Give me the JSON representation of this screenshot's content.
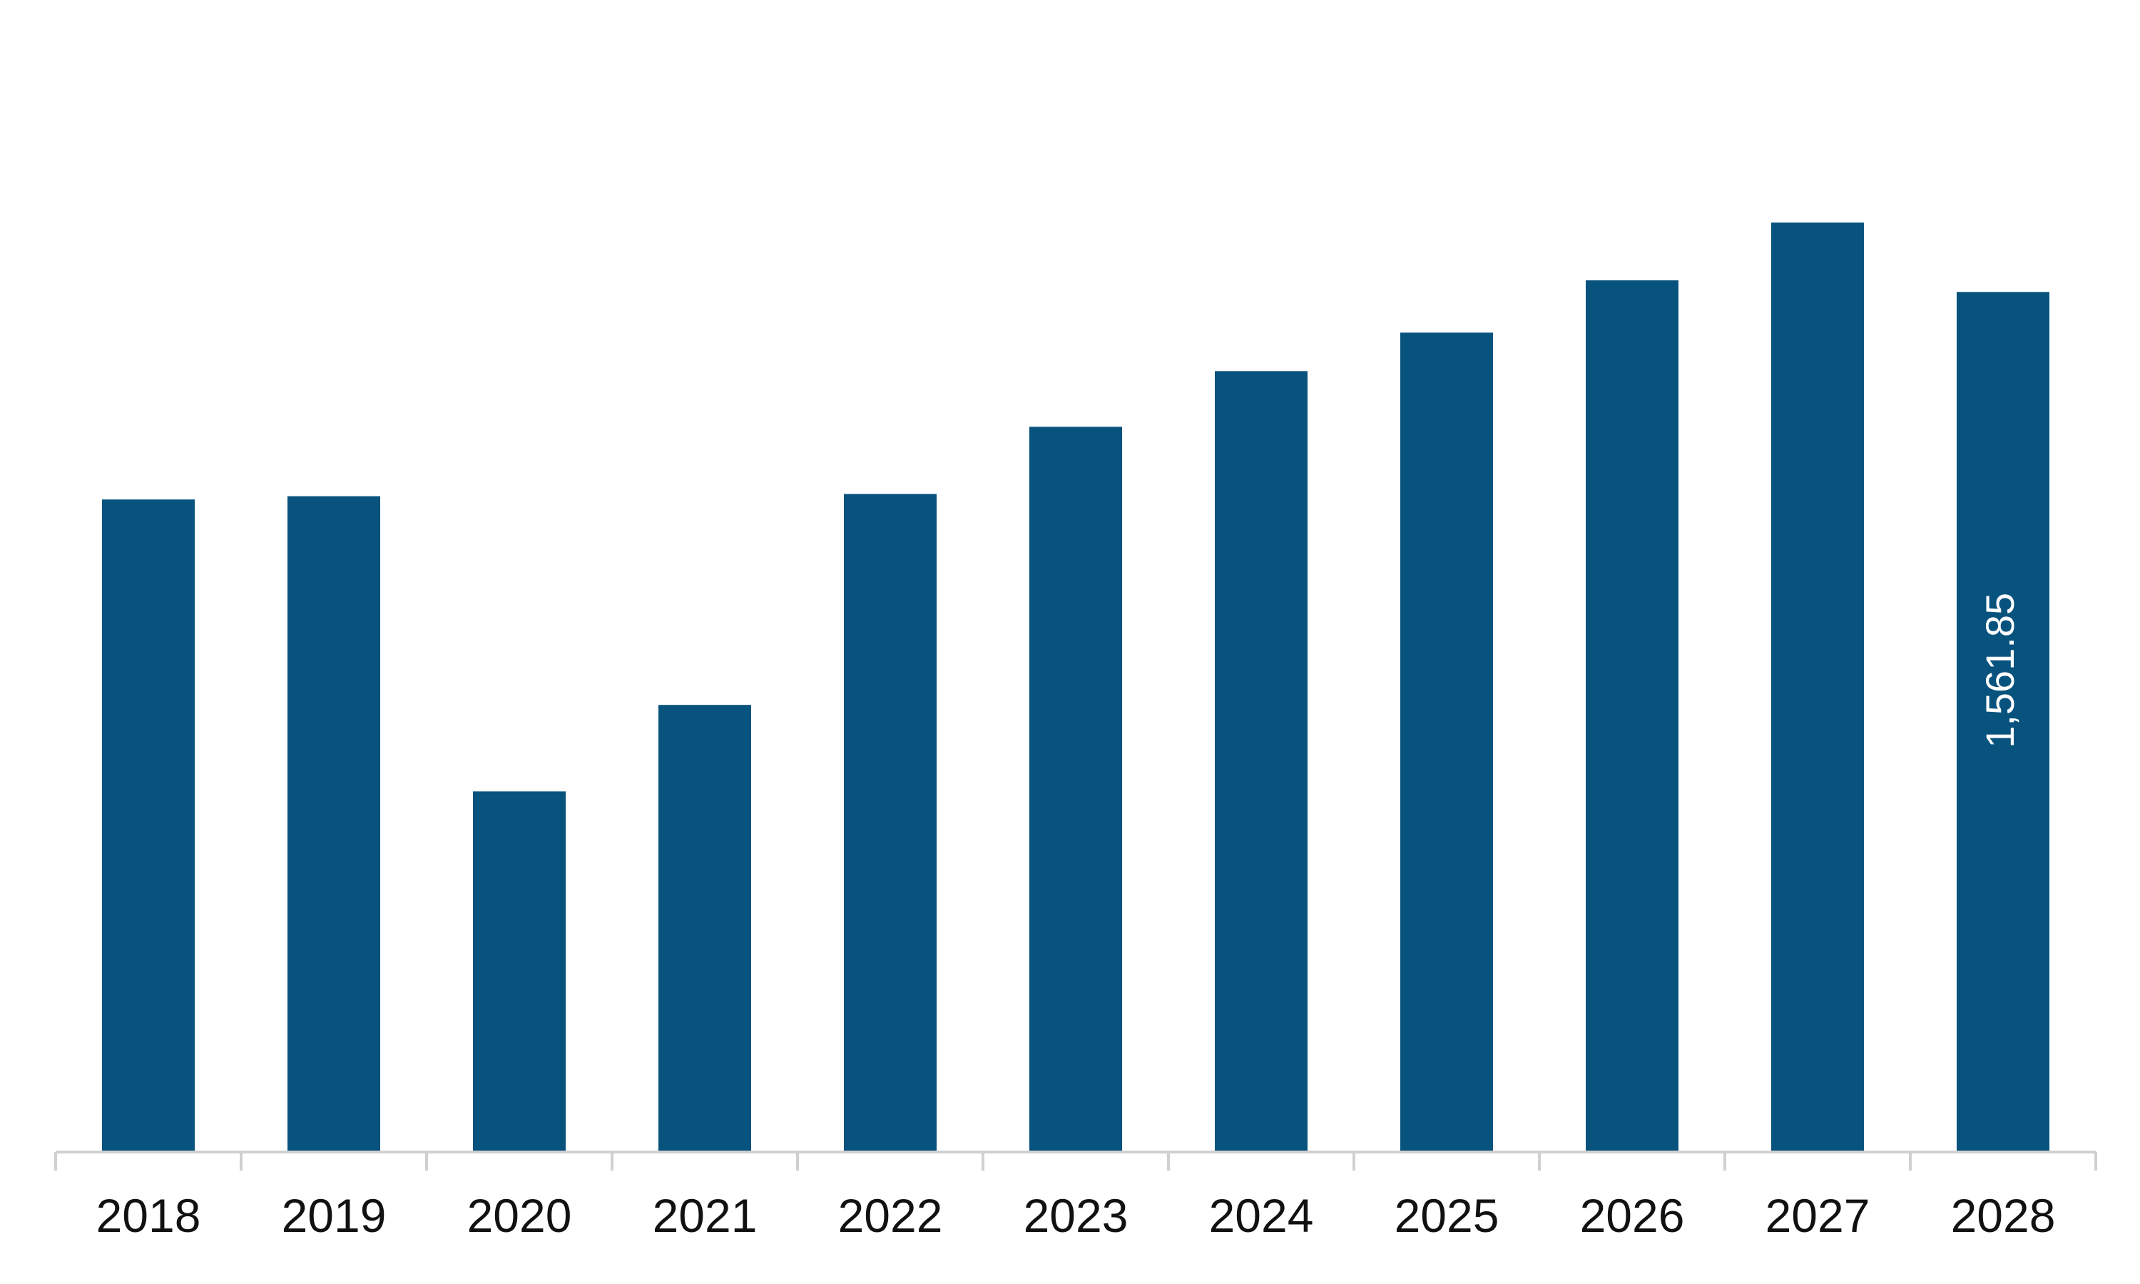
{
  "chart_data": {
    "type": "bar",
    "title": "",
    "xlabel": "",
    "ylabel": "",
    "categories": [
      "2018",
      "2019",
      "2020",
      "2021",
      "2022",
      "2023",
      "2024",
      "2025",
      "2026",
      "2027",
      "2028"
    ],
    "values": [
      1185,
      1191,
      655,
      812,
      1195,
      1317,
      1418,
      1488,
      1583,
      1688,
      1561.85
    ],
    "data_labels": [
      {
        "index": 10,
        "text": "1,561.85"
      }
    ],
    "ylim": [
      0,
      1820
    ],
    "grid": false,
    "legend": "none",
    "colors": {
      "bar": "#08537E",
      "axis": "#d0d0d0",
      "tick_text": "#111111",
      "data_label": "#ffffff"
    }
  }
}
